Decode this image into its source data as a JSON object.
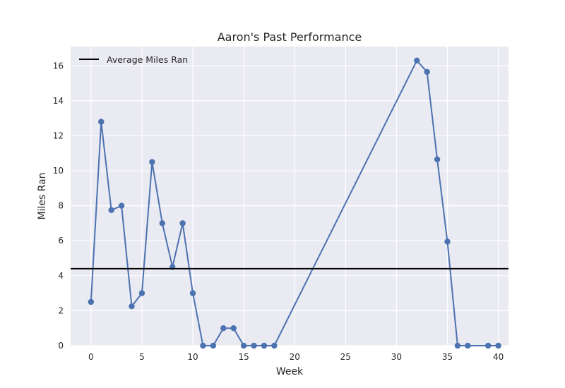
{
  "chart_data": {
    "type": "line",
    "title": "Aaron's Past Performance",
    "xlabel": "Week",
    "ylabel": "Miles Ran",
    "xlim": [
      -2,
      41
    ],
    "ylim": [
      0,
      17.1
    ],
    "xticks": [
      0,
      5,
      10,
      15,
      20,
      25,
      30,
      35,
      40
    ],
    "yticks": [
      0,
      2,
      4,
      6,
      8,
      10,
      12,
      14,
      16
    ],
    "grid": true,
    "legend_position": "top-left",
    "series": [
      {
        "color": "#4c72b0",
        "x": [
          0,
          1,
          2,
          3,
          4,
          5,
          6,
          7,
          8,
          9,
          10,
          11,
          12,
          13,
          14,
          15,
          16,
          17,
          18,
          32,
          33,
          34,
          35,
          36,
          37,
          39,
          40
        ],
        "y": [
          2.5,
          12.8,
          7.75,
          8.0,
          2.25,
          3.0,
          10.5,
          7.0,
          4.5,
          7.0,
          3.0,
          0.0,
          0.0,
          1.0,
          1.0,
          0.0,
          0.0,
          0.0,
          0.0,
          16.3,
          15.65,
          10.65,
          5.95,
          0.0,
          0.0,
          0.0,
          0.0
        ]
      }
    ],
    "hline": {
      "name": "Average Miles Ran",
      "y": 4.4,
      "color": "#000000"
    },
    "colors": {
      "plot_background": "#eaeaf2",
      "grid": "#ffffff",
      "text": "#262626"
    }
  }
}
